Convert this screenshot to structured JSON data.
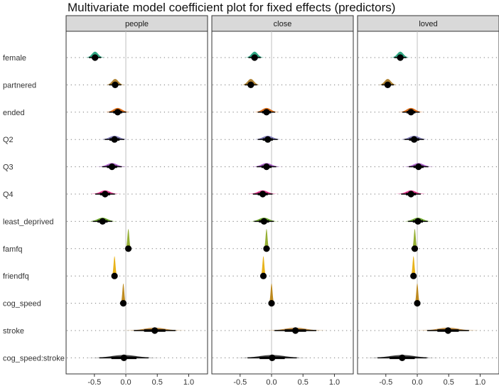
{
  "chart_data": {
    "type": "coefficient-density",
    "title": "Multivariate model coefficient plot for fixed effects (predictors)",
    "xlim": [
      -0.95,
      1.3
    ],
    "xticks": [
      -0.5,
      0.0,
      0.5,
      1.0
    ],
    "xtick_labels": [
      "-0.5",
      "0.0",
      "0.5",
      "1.0"
    ],
    "reference_line": 0,
    "predictors": [
      "female",
      "partnered",
      "ended",
      "Q2",
      "Q3",
      "Q4",
      "least_deprived",
      "famfq",
      "friendfq",
      "cog_speed",
      "stroke",
      "cog_speed:stroke"
    ],
    "colors": {
      "female": "#1b9e77",
      "partnered": "#a6761d",
      "ended": "#d95f02",
      "Q2": "#7570b3",
      "Q3": "#a050c0",
      "Q4": "#e7298a",
      "least_deprived": "#66a61e",
      "famfq": "#8aa61e",
      "friendfq": "#e6ab02",
      "cog_speed": "#b8800a",
      "stroke": "#b87d2a",
      "cog_speed:stroke": "#333333"
    },
    "panels": [
      {
        "name": "people",
        "estimates": [
          {
            "predictor": "female",
            "mean": -0.49,
            "sd": 0.05
          },
          {
            "predictor": "partnered",
            "mean": -0.17,
            "sd": 0.05
          },
          {
            "predictor": "ended",
            "mean": -0.13,
            "sd": 0.07
          },
          {
            "predictor": "Q2",
            "mean": -0.18,
            "sd": 0.08
          },
          {
            "predictor": "Q3",
            "mean": -0.22,
            "sd": 0.08
          },
          {
            "predictor": "Q4",
            "mean": -0.33,
            "sd": 0.08
          },
          {
            "predictor": "least_deprived",
            "mean": -0.37,
            "sd": 0.08
          },
          {
            "predictor": "famfq",
            "mean": 0.04,
            "sd": 0.015
          },
          {
            "predictor": "friendfq",
            "mean": -0.18,
            "sd": 0.015
          },
          {
            "predictor": "cog_speed",
            "mean": -0.04,
            "sd": 0.015
          },
          {
            "predictor": "stroke",
            "mean": 0.46,
            "sd": 0.17
          },
          {
            "predictor": "cog_speed:stroke",
            "mean": -0.03,
            "sd": 0.2
          }
        ]
      },
      {
        "name": "close",
        "estimates": [
          {
            "predictor": "female",
            "mean": -0.27,
            "sd": 0.05
          },
          {
            "predictor": "partnered",
            "mean": -0.33,
            "sd": 0.05
          },
          {
            "predictor": "ended",
            "mean": -0.08,
            "sd": 0.07
          },
          {
            "predictor": "Q2",
            "mean": -0.06,
            "sd": 0.08
          },
          {
            "predictor": "Q3",
            "mean": -0.08,
            "sd": 0.08
          },
          {
            "predictor": "Q4",
            "mean": -0.14,
            "sd": 0.08
          },
          {
            "predictor": "least_deprived",
            "mean": -0.12,
            "sd": 0.08
          },
          {
            "predictor": "famfq",
            "mean": -0.08,
            "sd": 0.015
          },
          {
            "predictor": "friendfq",
            "mean": -0.13,
            "sd": 0.015
          },
          {
            "predictor": "cog_speed",
            "mean": 0.0,
            "sd": 0.015
          },
          {
            "predictor": "stroke",
            "mean": 0.38,
            "sd": 0.17
          },
          {
            "predictor": "cog_speed:stroke",
            "mean": 0.01,
            "sd": 0.2
          }
        ]
      },
      {
        "name": "loved",
        "estimates": [
          {
            "predictor": "female",
            "mean": -0.27,
            "sd": 0.05
          },
          {
            "predictor": "partnered",
            "mean": -0.47,
            "sd": 0.05
          },
          {
            "predictor": "ended",
            "mean": -0.1,
            "sd": 0.07
          },
          {
            "predictor": "Q2",
            "mean": -0.05,
            "sd": 0.08
          },
          {
            "predictor": "Q3",
            "mean": 0.02,
            "sd": 0.08
          },
          {
            "predictor": "Q4",
            "mean": -0.1,
            "sd": 0.08
          },
          {
            "predictor": "least_deprived",
            "mean": 0.01,
            "sd": 0.08
          },
          {
            "predictor": "famfq",
            "mean": -0.04,
            "sd": 0.015
          },
          {
            "predictor": "friendfq",
            "mean": -0.06,
            "sd": 0.015
          },
          {
            "predictor": "cog_speed",
            "mean": 0.0,
            "sd": 0.015
          },
          {
            "predictor": "stroke",
            "mean": 0.49,
            "sd": 0.17
          },
          {
            "predictor": "cog_speed:stroke",
            "mean": -0.24,
            "sd": 0.2
          }
        ]
      }
    ]
  }
}
